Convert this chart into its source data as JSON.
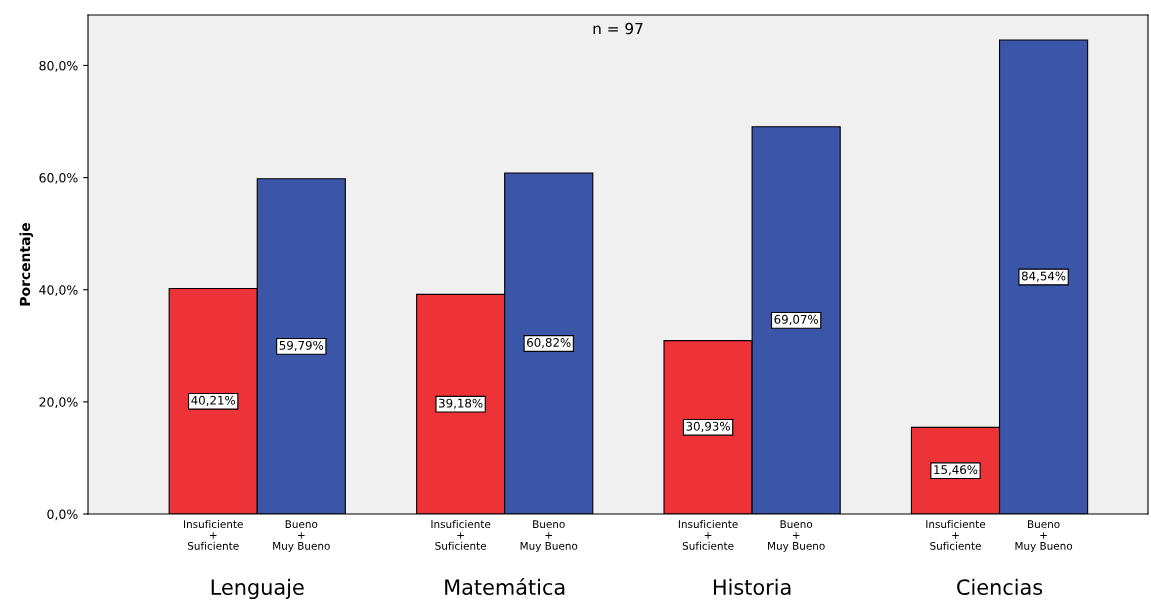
{
  "chart_data": {
    "type": "bar",
    "ylabel": "Porcentaje",
    "categories": [
      "Lenguaje",
      "Matemática",
      "Historia",
      "Ciencias"
    ],
    "series": [
      {
        "name": "Insuficiente\n+\nSuficiente",
        "color": "#ee3338",
        "values": [
          40.21,
          39.18,
          30.93,
          15.46
        ],
        "value_labels": [
          "40,21%",
          "39,18%",
          "30,93%",
          "15,46%"
        ]
      },
      {
        "name": "Bueno\n+\nMuy Bueno",
        "color": "#3b55a8",
        "values": [
          59.79,
          60.82,
          69.07,
          84.54
        ],
        "value_labels": [
          "59,79%",
          "60,82%",
          "69,07%",
          "84,54%"
        ]
      }
    ],
    "ylim": [
      0,
      89
    ],
    "yticks": [
      {
        "value": 0,
        "label": "0,0%"
      },
      {
        "value": 20,
        "label": "20,0%"
      },
      {
        "value": 40,
        "label": "40,0%"
      },
      {
        "value": 60,
        "label": "60,0%"
      },
      {
        "value": 80,
        "label": "80,0%"
      }
    ],
    "annotations": [
      "n = 97"
    ],
    "grid": false,
    "legend": false
  }
}
